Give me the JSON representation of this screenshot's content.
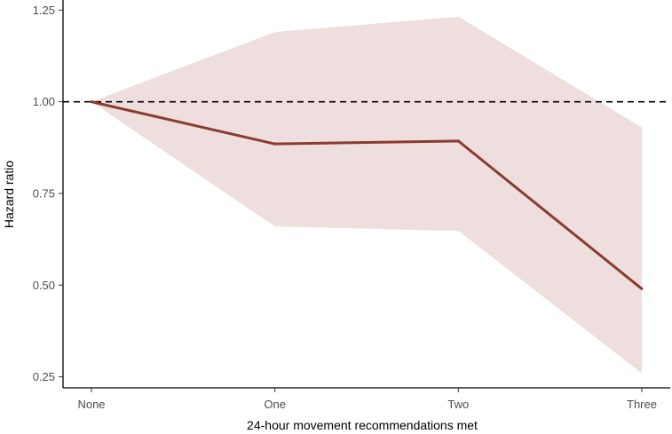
{
  "chart_data": {
    "type": "line",
    "title": "",
    "xlabel": "24-hour movement recommendations met",
    "ylabel": "Hazard ratio",
    "categories": [
      "None",
      "One",
      "Two",
      "Three"
    ],
    "series": [
      {
        "name": "Hazard ratio",
        "values": [
          1.0,
          0.885,
          0.893,
          0.49
        ],
        "lower": [
          1.0,
          0.66,
          0.648,
          0.26
        ],
        "upper": [
          1.0,
          1.19,
          1.232,
          0.93
        ],
        "color": "#8B3A2F",
        "band_color": "#EEDFDE"
      }
    ],
    "reference_line": {
      "y": 1.0,
      "style": "dashed",
      "color": "#000000"
    },
    "yticks": [
      0.25,
      0.5,
      0.75,
      1.0,
      1.25
    ],
    "ytick_labels": [
      "0.25",
      "0.50",
      "0.75",
      "1.00",
      "1.25"
    ],
    "ylim": [
      0.22,
      1.275
    ],
    "grid": false
  }
}
